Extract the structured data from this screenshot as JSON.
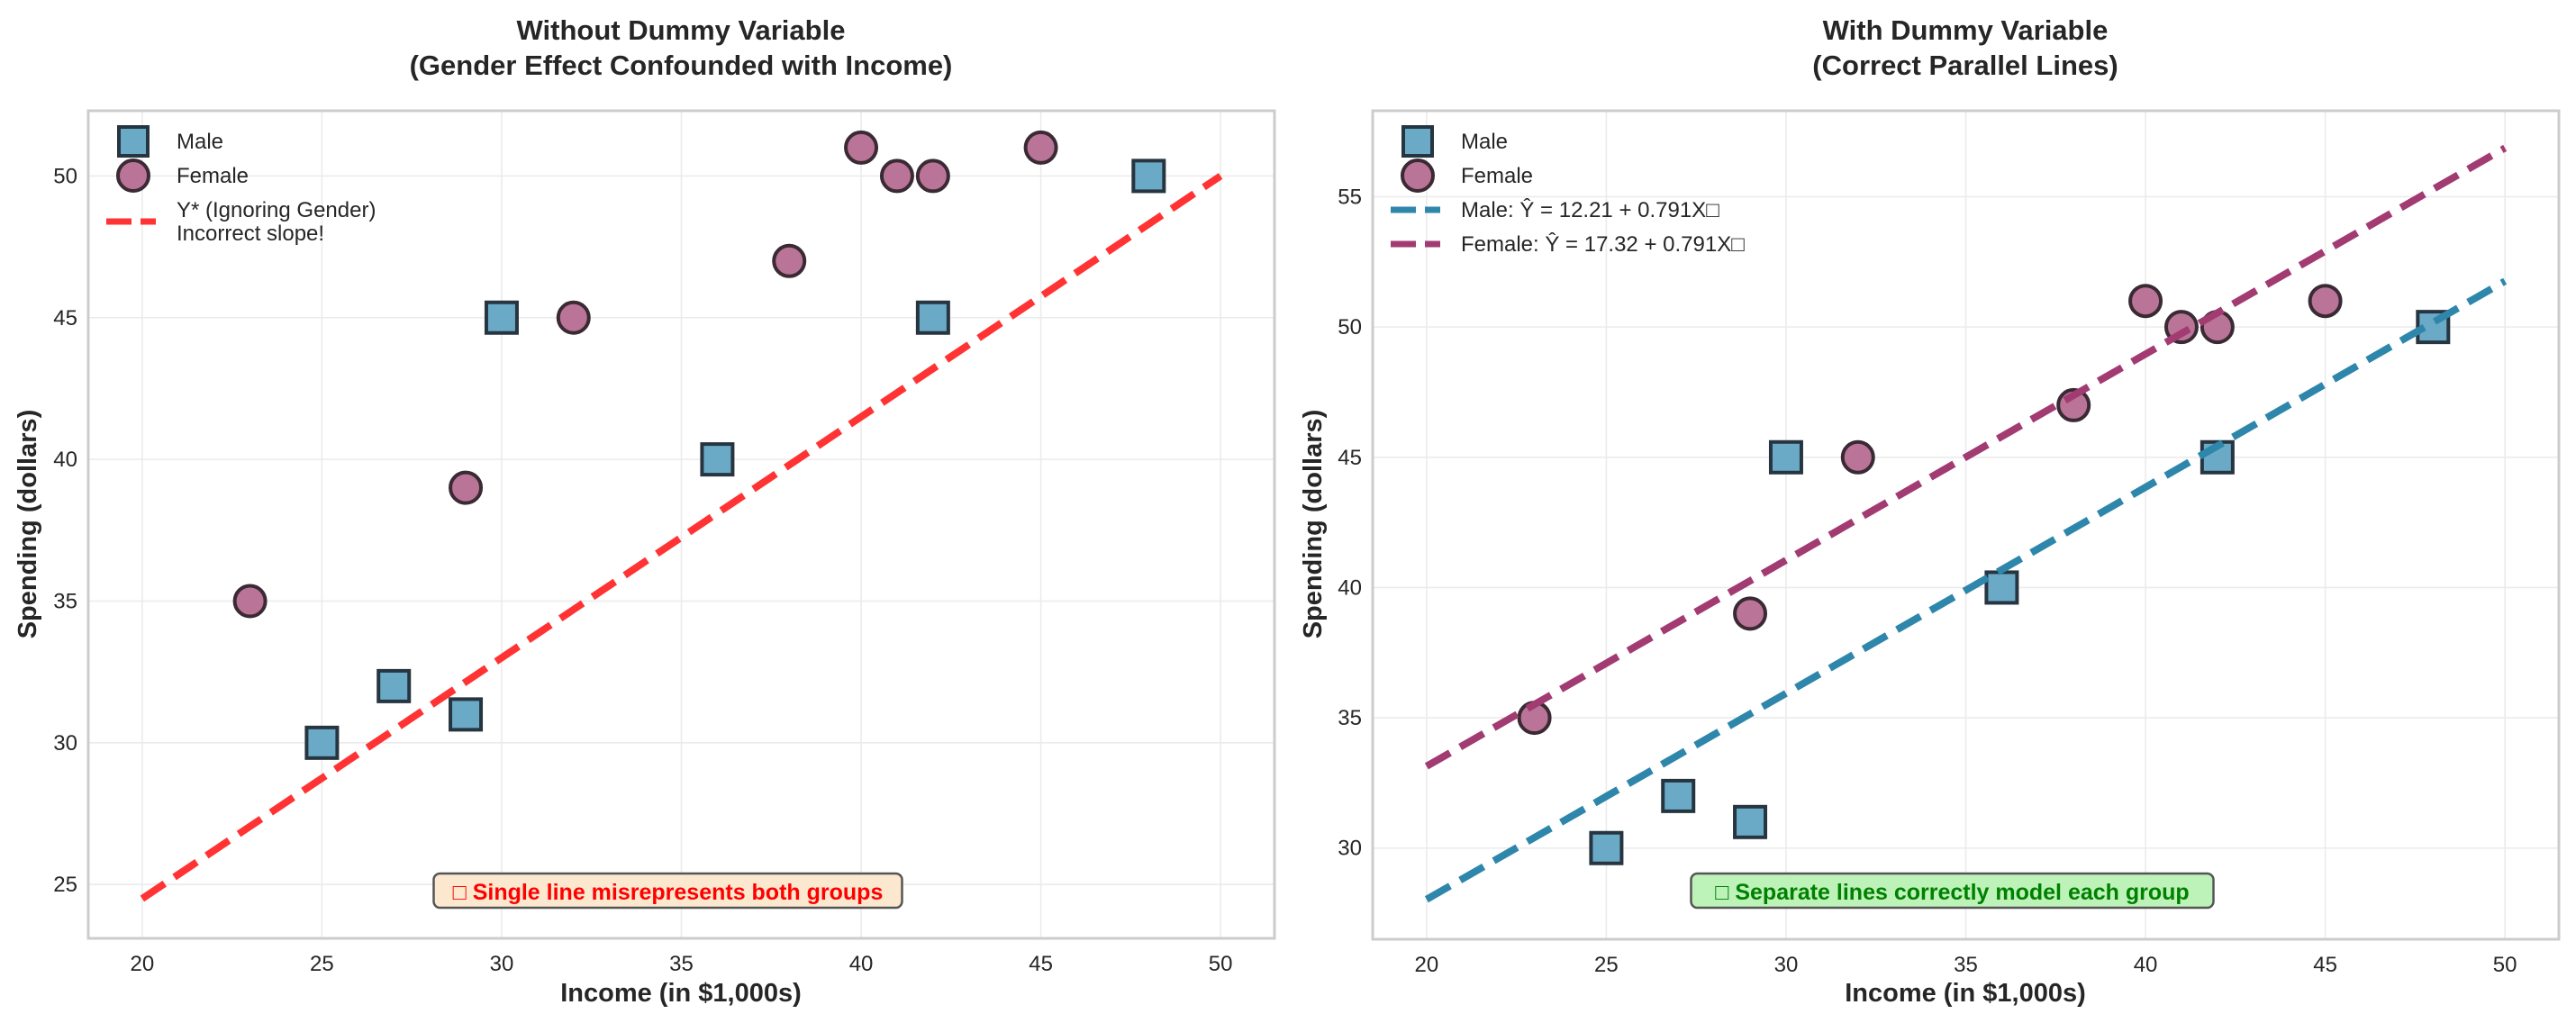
{
  "colors": {
    "male_fill": "#6aaac6",
    "male_edge": "#263540",
    "female_fill": "#b97497",
    "female_edge": "#3a2a33",
    "ignore_line": "#ff3333",
    "male_line": "#2e86ab",
    "female_line": "#a23b72",
    "annot_left_bg": "#fbe8ce",
    "annot_left_text": "#ff0000",
    "annot_right_bg": "#bdf2b9",
    "annot_right_text": "#008000"
  },
  "chart_data": [
    {
      "type": "scatter",
      "title": "Without Dummy Variable\n(Gender Effect Confounded with Income)",
      "title_lines": [
        "Without Dummy Variable",
        "(Gender Effect Confounded with Income)"
      ],
      "xlabel": "Income (in $1,000s)",
      "ylabel": "Spending (dollars)",
      "xlim": [
        18.5,
        51.5
      ],
      "ylim": [
        23.1,
        52.3
      ],
      "xticks": [
        20,
        25,
        30,
        35,
        40,
        45,
        50
      ],
      "yticks": [
        25,
        30,
        35,
        40,
        45,
        50
      ],
      "grid": true,
      "legend_position": "top-left",
      "series": [
        {
          "name": "Male",
          "kind": "scatter",
          "marker": "square",
          "x": [
            25,
            27,
            29,
            30,
            36,
            42,
            48
          ],
          "y": [
            30,
            32,
            31,
            45,
            40,
            45,
            50
          ]
        },
        {
          "name": "Female",
          "kind": "scatter",
          "marker": "circle",
          "x": [
            23,
            29,
            32,
            38,
            40,
            41,
            42,
            45
          ],
          "y": [
            35,
            39,
            45,
            47,
            51,
            50,
            50,
            51
          ]
        },
        {
          "name": "Y* (Ignoring Gender)\nIncorrect slope!",
          "legend_lines": [
            "Y* (Ignoring Gender)",
            "Incorrect slope!"
          ],
          "kind": "line",
          "style": "dashed",
          "x": [
            20,
            50
          ],
          "y": [
            24.5,
            50
          ]
        }
      ],
      "annotation": {
        "text": "□ Single line misrepresents both groups",
        "position": "bottom-center"
      }
    },
    {
      "type": "scatter",
      "title": "With Dummy Variable\n(Correct Parallel Lines)",
      "title_lines": [
        "With Dummy Variable",
        "(Correct Parallel Lines)"
      ],
      "xlabel": "Income (in $1,000s)",
      "ylabel": "Spending (dollars)",
      "xlim": [
        18.5,
        51.5
      ],
      "ylim": [
        26.5,
        58.3
      ],
      "xticks": [
        20,
        25,
        30,
        35,
        40,
        45,
        50
      ],
      "yticks": [
        30,
        35,
        40,
        45,
        50,
        55
      ],
      "grid": true,
      "legend_position": "top-left",
      "series": [
        {
          "name": "Male",
          "kind": "scatter",
          "marker": "square",
          "x": [
            25,
            27,
            29,
            30,
            36,
            42,
            48
          ],
          "y": [
            30,
            32,
            31,
            45,
            40,
            45,
            50
          ]
        },
        {
          "name": "Female",
          "kind": "scatter",
          "marker": "circle",
          "x": [
            23,
            29,
            32,
            38,
            40,
            41,
            42,
            45
          ],
          "y": [
            35,
            39,
            45,
            47,
            51,
            50,
            50,
            51
          ]
        },
        {
          "name": "Male: Ŷ = 12.21 + 0.791X□",
          "legend_lines": [
            "Male: Ŷ = 12.21 + 0.791X□"
          ],
          "kind": "line",
          "style": "dashed",
          "intercept": 12.21,
          "slope": 0.791,
          "x": [
            20,
            50
          ],
          "y": [
            28.03,
            51.76
          ]
        },
        {
          "name": "Female: Ŷ = 17.32 + 0.791X□",
          "legend_lines": [
            "Female: Ŷ = 17.32 + 0.791X□"
          ],
          "kind": "line",
          "style": "dashed",
          "intercept": 17.32,
          "slope": 0.791,
          "x": [
            20,
            50
          ],
          "y": [
            33.14,
            56.87
          ]
        }
      ],
      "annotation": {
        "text": "□ Separate lines correctly model each group",
        "position": "bottom-center"
      }
    }
  ]
}
